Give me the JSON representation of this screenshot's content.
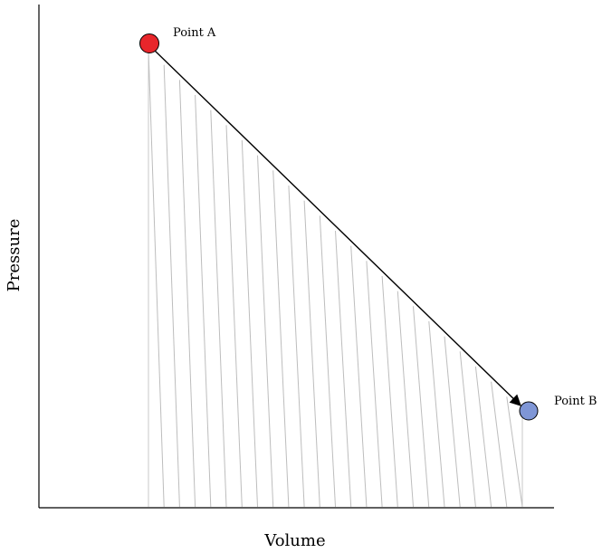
{
  "diagram": {
    "x_axis_label": "Volume",
    "y_axis_label": "Pressure",
    "point_a": {
      "label": "Point A",
      "color": "#e8262b"
    },
    "point_b": {
      "label": "Point B",
      "color": "#7f96d6"
    },
    "shaded_region": "hatched area under process curve from Point A to Point B",
    "arrow_direction": "Point A to Point B"
  }
}
